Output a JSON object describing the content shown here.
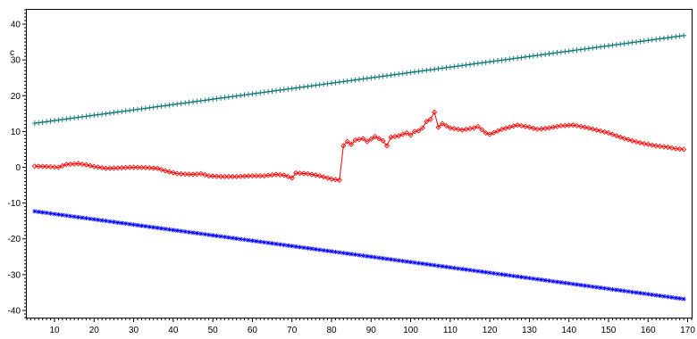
{
  "chart_data": {
    "type": "line",
    "title": "",
    "xlabel": "",
    "ylabel": "",
    "y_unit_label": "c",
    "xlim": [
      3,
      171
    ],
    "ylim": [
      -42,
      44
    ],
    "x_ticks": [
      10,
      20,
      30,
      40,
      50,
      60,
      70,
      80,
      90,
      100,
      110,
      120,
      130,
      140,
      150,
      160,
      170
    ],
    "y_ticks": [
      -40,
      -30,
      -20,
      -10,
      0,
      10,
      20,
      30,
      40
    ],
    "x_tick_labels": [
      "10",
      "20",
      "30",
      "40",
      "50",
      "60",
      "70",
      "80",
      "90",
      "100",
      "110",
      "120",
      "130",
      "140",
      "150",
      "160",
      "170"
    ],
    "y_tick_labels": [
      "-40",
      "-30",
      "-20",
      "-10",
      "0",
      "10",
      "20",
      "30",
      "40"
    ],
    "grid": false,
    "legend": "none",
    "series": [
      {
        "key": "upper",
        "color": "#007070",
        "marker": "plus",
        "x_start": 5,
        "x_end": 169,
        "x_step": 1,
        "y_start": 12.3,
        "y_end": 36.8
      },
      {
        "key": "lower",
        "color": "#0000ff",
        "marker": "star",
        "x_start": 5,
        "x_end": 169,
        "x_step": 1,
        "y_start": -12.3,
        "y_end": -36.8
      },
      {
        "key": "middle",
        "color": "#ff0000",
        "marker": "diamond",
        "x_start": 5,
        "x_end": 169,
        "x_step": 1,
        "anchors": [
          [
            5,
            0.3
          ],
          [
            8,
            0.2
          ],
          [
            11,
            0.0
          ],
          [
            13,
            0.8
          ],
          [
            16,
            1.0
          ],
          [
            18,
            0.7
          ],
          [
            20,
            0.2
          ],
          [
            23,
            -0.3
          ],
          [
            26,
            -0.2
          ],
          [
            30,
            0.0
          ],
          [
            33,
            -0.1
          ],
          [
            36,
            -0.3
          ],
          [
            38,
            -1.0
          ],
          [
            41,
            -1.8
          ],
          [
            45,
            -2.0
          ],
          [
            47,
            -1.8
          ],
          [
            49,
            -2.4
          ],
          [
            52,
            -2.6
          ],
          [
            56,
            -2.6
          ],
          [
            60,
            -2.4
          ],
          [
            63,
            -2.4
          ],
          [
            66,
            -2.0
          ],
          [
            68,
            -2.2
          ],
          [
            70,
            -3.0
          ],
          [
            71,
            -1.6
          ],
          [
            74,
            -1.8
          ],
          [
            77,
            -2.4
          ],
          [
            80,
            -3.3
          ],
          [
            82,
            -3.6
          ],
          [
            83,
            6.0
          ],
          [
            84,
            7.2
          ],
          [
            85,
            6.4
          ],
          [
            86,
            7.6
          ],
          [
            88,
            8.0
          ],
          [
            89,
            7.2
          ],
          [
            91,
            8.6
          ],
          [
            93,
            7.4
          ],
          [
            94,
            6.0
          ],
          [
            95,
            8.4
          ],
          [
            97,
            8.8
          ],
          [
            99,
            9.6
          ],
          [
            100,
            9.0
          ],
          [
            101,
            10.0
          ],
          [
            102,
            10.2
          ],
          [
            103,
            11.0
          ],
          [
            104,
            12.8
          ],
          [
            105,
            13.4
          ],
          [
            106,
            15.4
          ],
          [
            107,
            11.2
          ],
          [
            108,
            12.2
          ],
          [
            110,
            11.0
          ],
          [
            113,
            10.4
          ],
          [
            116,
            11.0
          ],
          [
            117,
            11.4
          ],
          [
            119,
            9.6
          ],
          [
            120,
            9.2
          ],
          [
            123,
            10.6
          ],
          [
            127,
            11.8
          ],
          [
            130,
            11.2
          ],
          [
            132,
            10.6
          ],
          [
            135,
            11.0
          ],
          [
            138,
            11.6
          ],
          [
            141,
            11.8
          ],
          [
            144,
            11.2
          ],
          [
            147,
            10.4
          ],
          [
            150,
            9.6
          ],
          [
            153,
            8.4
          ],
          [
            156,
            7.4
          ],
          [
            159,
            6.6
          ],
          [
            162,
            6.0
          ],
          [
            165,
            5.6
          ],
          [
            167,
            5.2
          ],
          [
            169,
            5.0
          ]
        ]
      }
    ]
  }
}
